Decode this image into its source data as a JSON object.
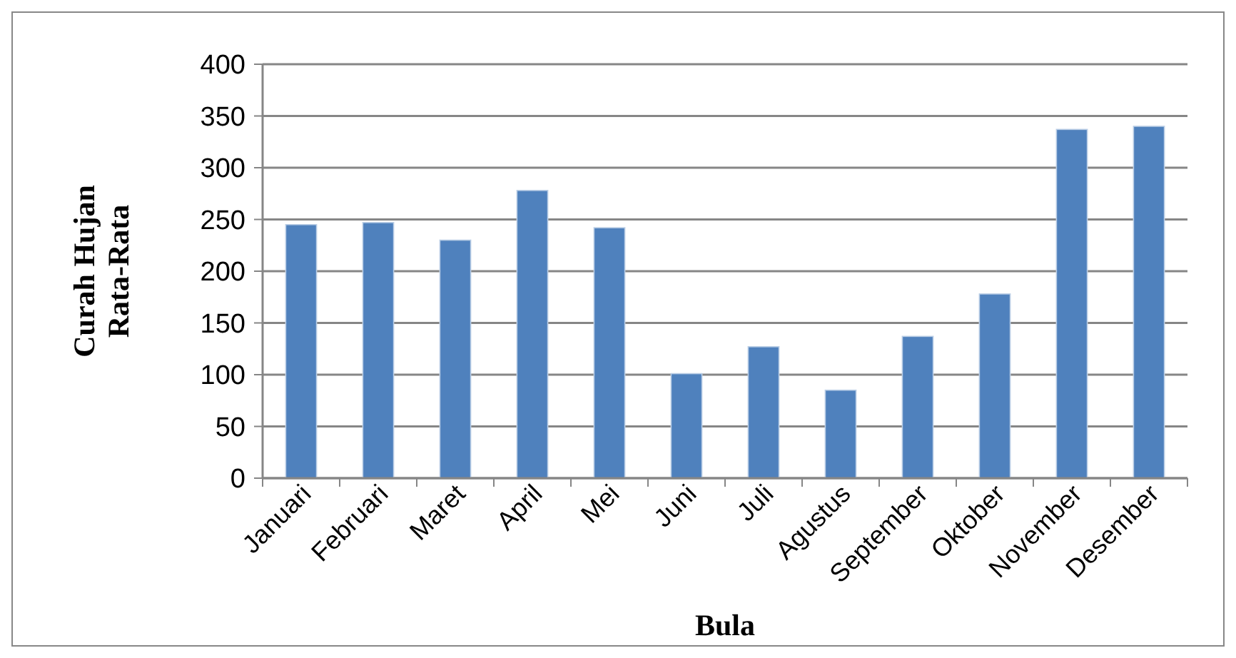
{
  "chart_data": {
    "type": "bar",
    "xlabel": "Bula",
    "ylabel": "Curah Hujan\nRata-Rata",
    "categories": [
      "Januari",
      "Februari",
      "Maret",
      "April",
      "Mei",
      "Juni",
      "Juli",
      "Agustus",
      "September",
      "Oktober",
      "November",
      "Desember"
    ],
    "values": [
      245,
      247,
      230,
      278,
      242,
      101,
      127,
      85,
      137,
      178,
      337,
      340
    ],
    "color": "#4f81bd",
    "ylim": [
      0,
      400
    ],
    "yticks": [
      0,
      50,
      100,
      150,
      200,
      250,
      300,
      350,
      400
    ],
    "grid": "y"
  }
}
